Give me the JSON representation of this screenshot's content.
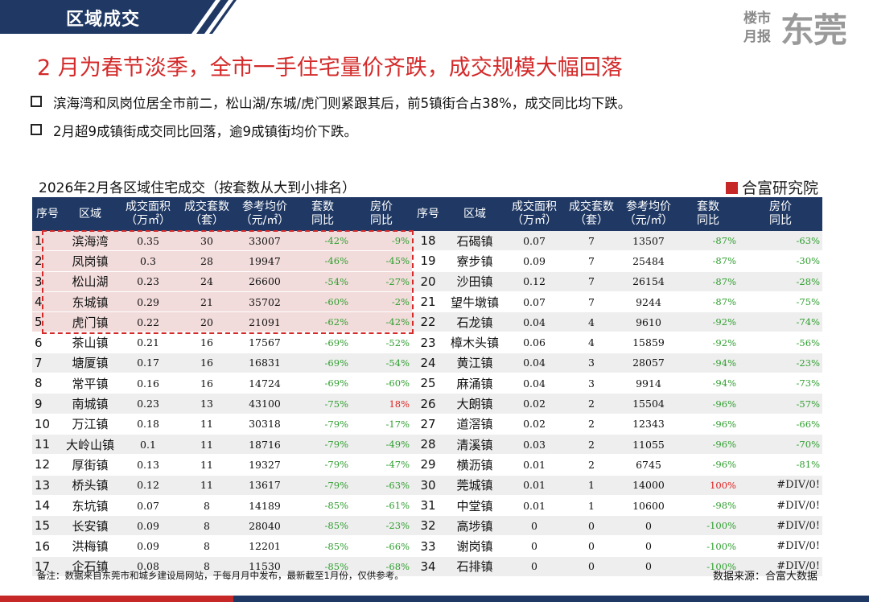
{
  "header": {
    "section": "区域成交",
    "brand_small_1": "楼市",
    "brand_small_2": "月报",
    "brand_big": "东莞"
  },
  "headline": "2 月为春节淡季，全市一手住宅量价齐跌，成交规模大幅回落",
  "bullets": [
    "滨海湾和凤岗位居全市前二，松山湖/东城/虎门则紧跟其后，前5镇街合占38%，成交同比均下跌。",
    "2月超9成镇街成交同比回落，逾9成镇街均价下跌。"
  ],
  "table": {
    "title": "2026年2月各区域住宅成交（按套数从大到小排名）",
    "logo": "合富研究院",
    "columns": [
      [
        "序号"
      ],
      [
        "区域"
      ],
      [
        "成交面积",
        "（万㎡）"
      ],
      [
        "成交套数",
        "（套）"
      ],
      [
        "参考均价",
        "（元/㎡）"
      ],
      [
        "套数",
        "同比"
      ],
      [
        "房价",
        "同比"
      ]
    ],
    "rows": [
      [
        "1",
        "滨海湾",
        "0.35",
        "30",
        "33007",
        "-42%",
        "-9%"
      ],
      [
        "2",
        "凤岗镇",
        "0.3",
        "28",
        "19947",
        "-46%",
        "-45%"
      ],
      [
        "3",
        "松山湖",
        "0.23",
        "24",
        "26600",
        "-54%",
        "-27%"
      ],
      [
        "4",
        "东城镇",
        "0.29",
        "21",
        "35702",
        "-60%",
        "-2%"
      ],
      [
        "5",
        "虎门镇",
        "0.22",
        "20",
        "21091",
        "-62%",
        "-42%"
      ],
      [
        "6",
        "茶山镇",
        "0.21",
        "16",
        "17567",
        "-69%",
        "-52%"
      ],
      [
        "7",
        "塘厦镇",
        "0.17",
        "16",
        "16831",
        "-69%",
        "-54%"
      ],
      [
        "8",
        "常平镇",
        "0.16",
        "16",
        "14724",
        "-69%",
        "-60%"
      ],
      [
        "9",
        "南城镇",
        "0.23",
        "13",
        "43100",
        "-75%",
        "18%"
      ],
      [
        "10",
        "万江镇",
        "0.18",
        "11",
        "30318",
        "-79%",
        "-17%"
      ],
      [
        "11",
        "大岭山镇",
        "0.1",
        "11",
        "18716",
        "-79%",
        "-49%"
      ],
      [
        "12",
        "厚街镇",
        "0.13",
        "11",
        "19327",
        "-79%",
        "-47%"
      ],
      [
        "13",
        "桥头镇",
        "0.12",
        "11",
        "13617",
        "-79%",
        "-63%"
      ],
      [
        "14",
        "东坑镇",
        "0.07",
        "8",
        "14189",
        "-85%",
        "-61%"
      ],
      [
        "15",
        "长安镇",
        "0.09",
        "8",
        "28040",
        "-85%",
        "-23%"
      ],
      [
        "16",
        "洪梅镇",
        "0.09",
        "8",
        "12201",
        "-85%",
        "-66%"
      ],
      [
        "17",
        "企石镇",
        "0.08",
        "8",
        "11530",
        "-85%",
        "-68%"
      ],
      [
        "18",
        "石碣镇",
        "0.07",
        "7",
        "13507",
        "-87%",
        "-63%"
      ],
      [
        "19",
        "寮步镇",
        "0.09",
        "7",
        "25484",
        "-87%",
        "-30%"
      ],
      [
        "20",
        "沙田镇",
        "0.12",
        "7",
        "26154",
        "-87%",
        "-28%"
      ],
      [
        "21",
        "望牛墩镇",
        "0.07",
        "7",
        "9244",
        "-87%",
        "-75%"
      ],
      [
        "22",
        "石龙镇",
        "0.04",
        "4",
        "9610",
        "-92%",
        "-74%"
      ],
      [
        "23",
        "樟木头镇",
        "0.06",
        "4",
        "15859",
        "-92%",
        "-56%"
      ],
      [
        "24",
        "黄江镇",
        "0.04",
        "3",
        "28057",
        "-94%",
        "-23%"
      ],
      [
        "25",
        "麻涌镇",
        "0.04",
        "3",
        "9914",
        "-94%",
        "-73%"
      ],
      [
        "26",
        "大朗镇",
        "0.02",
        "2",
        "15504",
        "-96%",
        "-57%"
      ],
      [
        "27",
        "道滘镇",
        "0.02",
        "2",
        "12343",
        "-96%",
        "-66%"
      ],
      [
        "28",
        "清溪镇",
        "0.03",
        "2",
        "11055",
        "-96%",
        "-70%"
      ],
      [
        "29",
        "横沥镇",
        "0.01",
        "2",
        "6745",
        "-96%",
        "-81%"
      ],
      [
        "30",
        "莞城镇",
        "0.01",
        "1",
        "14000",
        "100%",
        "#DIV/0!"
      ],
      [
        "31",
        "中堂镇",
        "0.01",
        "1",
        "10600",
        "-98%",
        "#DIV/0!"
      ],
      [
        "32",
        "高埗镇",
        "0",
        "0",
        "0",
        "-100%",
        "#DIV/0!"
      ],
      [
        "33",
        "谢岗镇",
        "0",
        "0",
        "0",
        "-100%",
        "#DIV/0!"
      ],
      [
        "34",
        "石排镇",
        "0",
        "0",
        "0",
        "-100%",
        "#DIV/0!"
      ]
    ]
  },
  "footnote": "备注：数据来自东莞市和城乡建设局网站，于每月月中发布，最新截至1月份，仅供参考。",
  "source": "数据来源：合富大数据"
}
